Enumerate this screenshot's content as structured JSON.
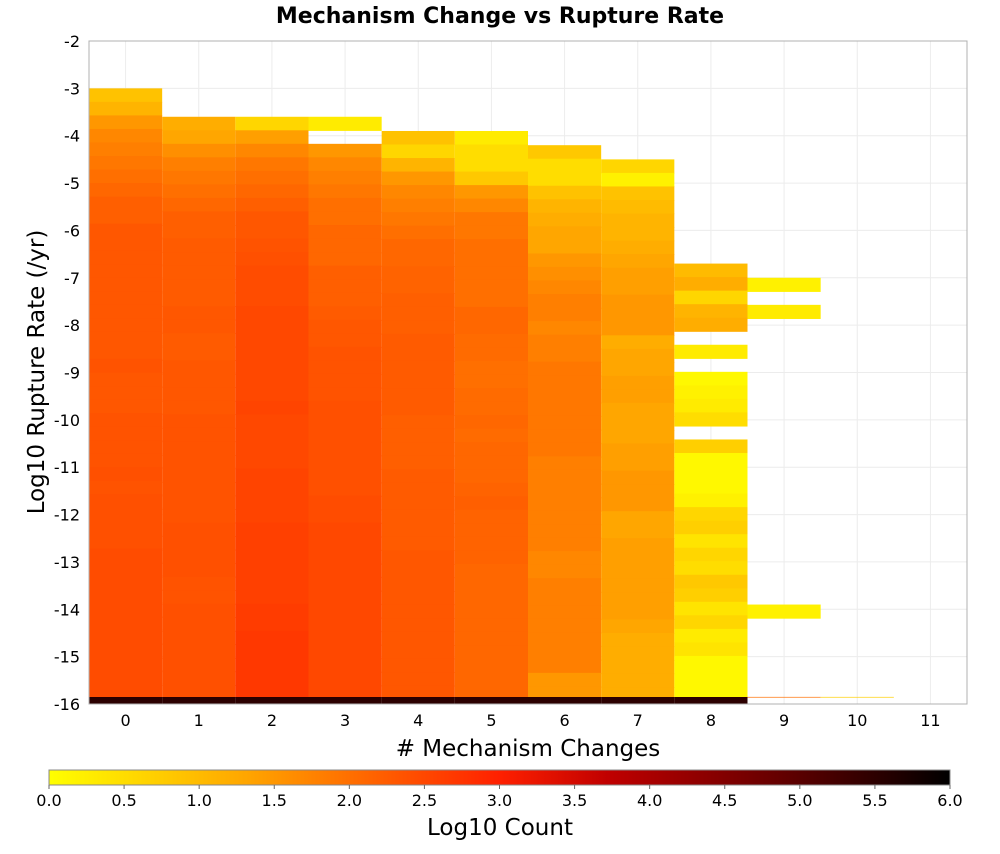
{
  "chart_data": {
    "type": "heatmap",
    "title": "Mechanism Change vs Rupture Rate",
    "xlabel": "# Mechanism Changes",
    "ylabel": "Log10 Rupture Rate (/yr)",
    "x_categories": [
      "0",
      "1",
      "2",
      "3",
      "4",
      "5",
      "6",
      "7",
      "8",
      "9",
      "10",
      "11"
    ],
    "xlim": [
      -0.5,
      11.5
    ],
    "ylim": [
      -16,
      -2
    ],
    "y_ticks": [
      "-2",
      "-3",
      "-4",
      "-5",
      "-6",
      "-7",
      "-8",
      "-9",
      "-10",
      "-11",
      "-12",
      "-13",
      "-14",
      "-15",
      "-16"
    ],
    "grid": true,
    "bin_height": 0.2857,
    "columns": [
      {
        "x": 0,
        "y_start": -3.0,
        "values": [
          0.9,
          1.1,
          1.5,
          1.7,
          1.8,
          1.9,
          2.0,
          2.1,
          2.2,
          2.2,
          2.3,
          2.3,
          2.3,
          2.3,
          2.3,
          2.3,
          2.3,
          2.3,
          2.3,
          2.3,
          2.35,
          2.3,
          2.3,
          2.3,
          2.35,
          2.35,
          2.35,
          2.35,
          2.4,
          2.35,
          2.4,
          2.4,
          2.4,
          2.4,
          2.45,
          2.45,
          2.45,
          2.45,
          2.45,
          2.45,
          2.45,
          2.45,
          2.45,
          2.45,
          2.45
        ]
      },
      {
        "x": 1,
        "y_start": -3.6,
        "values": [
          1.2,
          1.3,
          1.6,
          1.8,
          1.9,
          2.0,
          2.1,
          2.2,
          2.2,
          2.25,
          2.25,
          2.25,
          2.25,
          2.25,
          2.3,
          2.3,
          2.25,
          2.25,
          2.3,
          2.3,
          2.3,
          2.3,
          2.35,
          2.35,
          2.35,
          2.35,
          2.35,
          2.35,
          2.35,
          2.35,
          2.4,
          2.4,
          2.4,
          2.4,
          2.35,
          2.35,
          2.4,
          2.4,
          2.4,
          2.4,
          2.4,
          2.4,
          2.4
        ]
      },
      {
        "x": 2,
        "y_start": -3.6,
        "values": [
          0.6,
          1.4,
          1.7,
          1.9,
          2.0,
          2.1,
          2.2,
          2.3,
          2.3,
          2.35,
          2.4,
          2.45,
          2.45,
          2.45,
          2.5,
          2.5,
          2.5,
          2.5,
          2.5,
          2.5,
          2.5,
          2.55,
          2.5,
          2.5,
          2.5,
          2.5,
          2.55,
          2.55,
          2.55,
          2.55,
          2.6,
          2.6,
          2.6,
          2.6,
          2.6,
          2.6,
          2.65,
          2.65,
          2.7,
          2.7,
          2.7,
          2.7,
          2.7
        ]
      },
      {
        "x": 3,
        "y_start": -3.6,
        "values": [
          0.3,
          -1,
          1.5,
          1.7,
          1.8,
          1.9,
          2.0,
          2.0,
          2.1,
          2.1,
          2.1,
          2.2,
          2.2,
          2.2,
          2.25,
          2.3,
          2.3,
          2.35,
          2.35,
          2.35,
          2.35,
          2.4,
          2.4,
          2.4,
          2.4,
          2.4,
          2.4,
          2.4,
          2.45,
          2.45,
          2.5,
          2.5,
          2.5,
          2.5,
          2.5,
          2.5,
          2.5,
          2.5,
          2.5,
          2.5,
          2.5,
          2.5,
          2.5
        ]
      },
      {
        "x": 4,
        "y_start": -3.9,
        "values": [
          0.9,
          0.6,
          1.1,
          1.5,
          1.7,
          1.8,
          1.9,
          2.0,
          2.1,
          2.1,
          2.15,
          2.15,
          2.2,
          2.2,
          2.2,
          2.25,
          2.25,
          2.25,
          2.25,
          2.25,
          2.25,
          2.2,
          2.2,
          2.2,
          2.2,
          2.25,
          2.25,
          2.25,
          2.25,
          2.25,
          2.25,
          2.3,
          2.3,
          2.3,
          2.3,
          2.3,
          2.3,
          2.3,
          2.3,
          2.3,
          2.3,
          2.3
        ]
      },
      {
        "x": 5,
        "y_start": -3.9,
        "values": [
          0.3,
          0.5,
          0.5,
          0.8,
          1.5,
          1.7,
          1.9,
          1.9,
          2.0,
          2.0,
          2.0,
          2.0,
          2.0,
          2.1,
          2.1,
          2.05,
          2.05,
          2.0,
          2.0,
          2.05,
          2.05,
          2.1,
          2.05,
          2.1,
          2.1,
          2.1,
          2.15,
          2.2,
          2.15,
          2.15,
          2.15,
          2.15,
          2.1,
          2.1,
          2.1,
          2.1,
          2.1,
          2.1,
          2.1,
          2.1,
          2.1,
          2.1
        ]
      },
      {
        "x": 6,
        "y_start": -4.2,
        "values": [
          0.8,
          0.5,
          0.5,
          0.9,
          1.1,
          1.2,
          1.3,
          1.3,
          1.5,
          1.6,
          1.7,
          1.8,
          1.8,
          1.7,
          1.8,
          1.8,
          1.9,
          1.9,
          1.9,
          1.9,
          1.9,
          1.9,
          1.9,
          1.8,
          1.8,
          1.8,
          1.8,
          1.8,
          1.8,
          1.8,
          1.7,
          1.7,
          1.8,
          1.8,
          1.8,
          1.8,
          1.8,
          1.8,
          1.8,
          1.5,
          1.5
        ]
      },
      {
        "x": 7,
        "y_start": -4.5,
        "values": [
          0.6,
          0.2,
          0.9,
          1.0,
          1.1,
          1.1,
          1.2,
          1.3,
          1.4,
          1.4,
          1.5,
          1.5,
          1.5,
          1.2,
          1.3,
          1.3,
          1.4,
          1.4,
          1.3,
          1.3,
          1.3,
          1.4,
          1.4,
          1.5,
          1.5,
          1.5,
          1.3,
          1.3,
          1.4,
          1.4,
          1.4,
          1.4,
          1.4,
          1.4,
          1.3,
          1.2,
          1.2,
          1.2,
          1.2,
          1.2
        ]
      },
      {
        "x": 8,
        "y_start": -6.7,
        "values": [
          1.0,
          1.2,
          0.6,
          1.1,
          1.2,
          -1,
          0.3,
          -1,
          0.1,
          0.2,
          0.3,
          0.5,
          -1,
          0.7,
          0.1,
          0.1,
          0.1,
          0.2,
          0.6,
          0.7,
          0.4,
          0.6,
          0.5,
          0.8,
          0.7,
          0.4,
          0.6,
          0.3,
          0.4,
          0.1,
          0.1,
          0.1
        ]
      },
      {
        "x": 9,
        "y_start": -7.0,
        "values": [
          0.2,
          -1,
          0.3
        ]
      },
      {
        "x": 9,
        "y_start": -13.9,
        "values": [
          0.2
        ]
      },
      {
        "x": 9,
        "y_start": -15.85,
        "values": [
          2.0
        ]
      },
      {
        "x": 10,
        "y_start": -15.85,
        "values": [
          0.7
        ]
      }
    ],
    "bottom_row": {
      "y": -16,
      "values": [
        5.5,
        5.5,
        5.5,
        5.5,
        5.5,
        5.5,
        5.5,
        5.5,
        5.5
      ]
    },
    "colorbar": {
      "label": "Log10 Count",
      "min": 0,
      "max": 6,
      "ticks": [
        "0.0",
        "0.5",
        "1.0",
        "1.5",
        "2.0",
        "2.5",
        "3.0",
        "3.5",
        "4.0",
        "4.5",
        "5.0",
        "5.5",
        "6.0"
      ],
      "colors": [
        "#ffff00",
        "#ffa500",
        "#ff2000",
        "#c00000",
        "#600000",
        "#000000"
      ],
      "stops": [
        0,
        0.22,
        0.5,
        0.62,
        0.82,
        1
      ]
    }
  }
}
